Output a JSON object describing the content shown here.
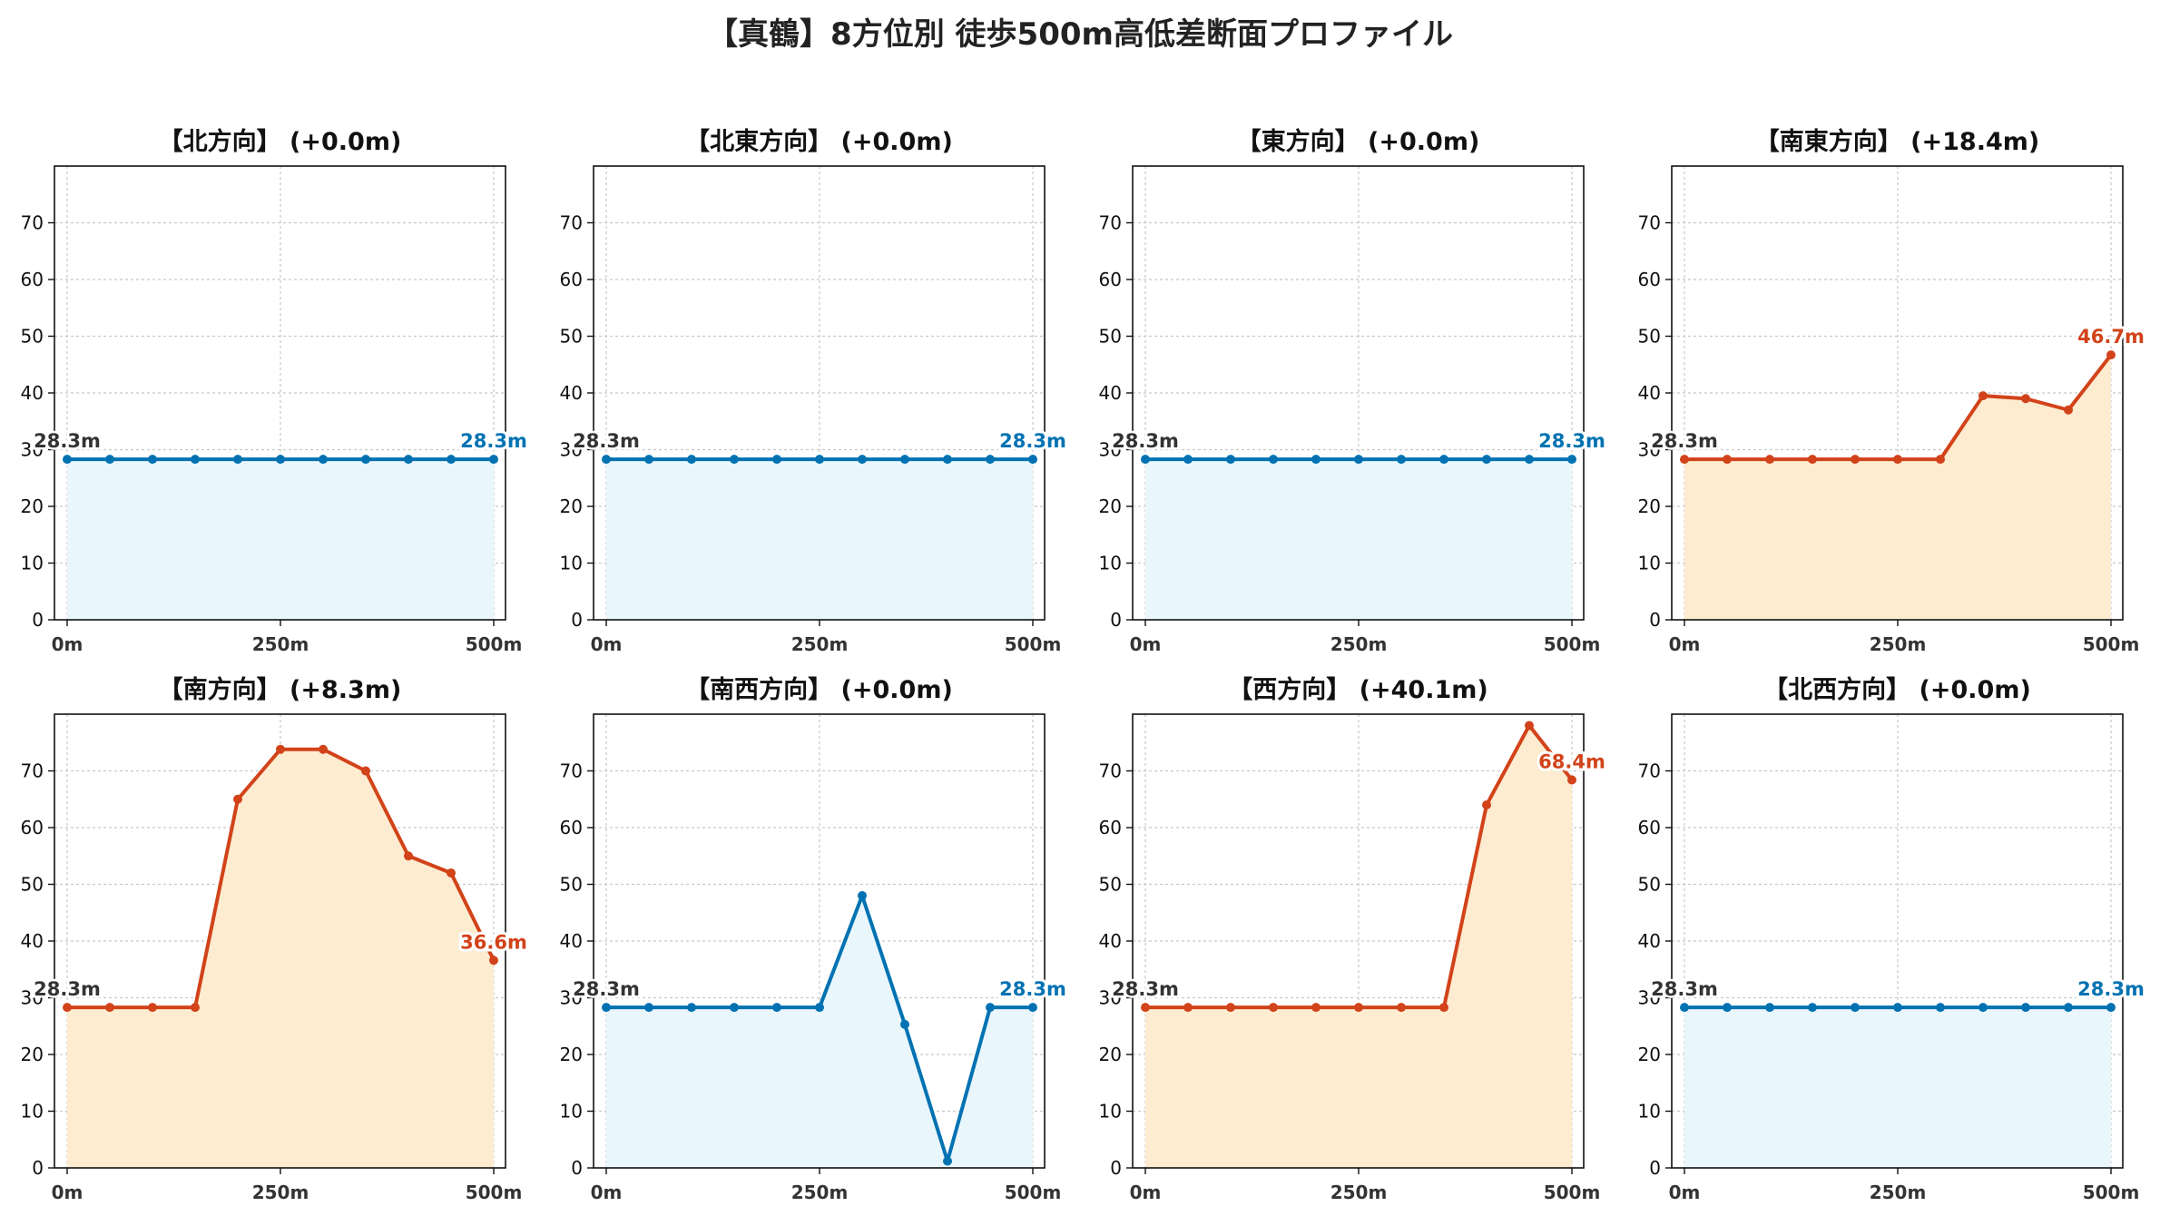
{
  "title": "【真鶴】8方位別 徒歩500m高低差断面プロファイル",
  "colors": {
    "flat_line": "#0072B2",
    "flat_fill": "#e9f6fb",
    "rise_line": "#D2431A",
    "rise_fill": "#fdecd0",
    "start_label": "#333333",
    "grid": "#c8c8c8"
  },
  "chart_data": [
    {
      "type": "area",
      "title": "【北方向】 (+0.0m)",
      "style": "flat",
      "x": [
        0,
        50,
        100,
        150,
        200,
        250,
        300,
        350,
        400,
        450,
        500
      ],
      "y": [
        28.3,
        28.3,
        28.3,
        28.3,
        28.3,
        28.3,
        28.3,
        28.3,
        28.3,
        28.3,
        28.3
      ],
      "xticks": [
        "0m",
        "250m",
        "500m"
      ],
      "yticks": [
        "0",
        "10",
        "20",
        "30",
        "40",
        "50",
        "60",
        "70"
      ],
      "ylim": [
        0,
        80
      ],
      "xlim": [
        0,
        500
      ],
      "grid": true,
      "start_label": "28.3m",
      "end_label": "28.3m"
    },
    {
      "type": "area",
      "title": "【北東方向】 (+0.0m)",
      "style": "flat",
      "x": [
        0,
        50,
        100,
        150,
        200,
        250,
        300,
        350,
        400,
        450,
        500
      ],
      "y": [
        28.3,
        28.3,
        28.3,
        28.3,
        28.3,
        28.3,
        28.3,
        28.3,
        28.3,
        28.3,
        28.3
      ],
      "xticks": [
        "0m",
        "250m",
        "500m"
      ],
      "yticks": [
        "0",
        "10",
        "20",
        "30",
        "40",
        "50",
        "60",
        "70"
      ],
      "ylim": [
        0,
        80
      ],
      "xlim": [
        0,
        500
      ],
      "grid": true,
      "start_label": "28.3m",
      "end_label": "28.3m"
    },
    {
      "type": "area",
      "title": "【東方向】 (+0.0m)",
      "style": "flat",
      "x": [
        0,
        50,
        100,
        150,
        200,
        250,
        300,
        350,
        400,
        450,
        500
      ],
      "y": [
        28.3,
        28.3,
        28.3,
        28.3,
        28.3,
        28.3,
        28.3,
        28.3,
        28.3,
        28.3,
        28.3
      ],
      "xticks": [
        "0m",
        "250m",
        "500m"
      ],
      "yticks": [
        "0",
        "10",
        "20",
        "30",
        "40",
        "50",
        "60",
        "70"
      ],
      "ylim": [
        0,
        80
      ],
      "xlim": [
        0,
        500
      ],
      "grid": true,
      "start_label": "28.3m",
      "end_label": "28.3m"
    },
    {
      "type": "area",
      "title": "【南東方向】 (+18.4m)",
      "style": "rise",
      "x": [
        0,
        50,
        100,
        150,
        200,
        250,
        300,
        350,
        400,
        450,
        500
      ],
      "y": [
        28.3,
        28.3,
        28.3,
        28.3,
        28.3,
        28.3,
        28.3,
        39.5,
        39.0,
        37.0,
        46.7
      ],
      "xticks": [
        "0m",
        "250m",
        "500m"
      ],
      "yticks": [
        "0",
        "10",
        "20",
        "30",
        "40",
        "50",
        "60",
        "70"
      ],
      "ylim": [
        0,
        80
      ],
      "xlim": [
        0,
        500
      ],
      "grid": true,
      "start_label": "28.3m",
      "end_label": "46.7m"
    },
    {
      "type": "area",
      "title": "【南方向】 (+8.3m)",
      "style": "rise",
      "x": [
        0,
        50,
        100,
        150,
        200,
        250,
        300,
        350,
        400,
        450,
        500
      ],
      "y": [
        28.3,
        28.3,
        28.3,
        28.3,
        65.0,
        73.8,
        73.8,
        70.0,
        55.0,
        52.0,
        36.6
      ],
      "xticks": [
        "0m",
        "250m",
        "500m"
      ],
      "yticks": [
        "0",
        "10",
        "20",
        "30",
        "40",
        "50",
        "60",
        "70"
      ],
      "ylim": [
        0,
        80
      ],
      "xlim": [
        0,
        500
      ],
      "grid": true,
      "start_label": "28.3m",
      "end_label": "36.6m"
    },
    {
      "type": "area",
      "title": "【南西方向】 (+0.0m)",
      "style": "flat",
      "x": [
        0,
        50,
        100,
        150,
        200,
        250,
        300,
        350,
        400,
        450,
        500
      ],
      "y": [
        28.3,
        28.3,
        28.3,
        28.3,
        28.3,
        28.3,
        48.0,
        25.3,
        1.2,
        28.3,
        28.3
      ],
      "xticks": [
        "0m",
        "250m",
        "500m"
      ],
      "yticks": [
        "0",
        "10",
        "20",
        "30",
        "40",
        "50",
        "60",
        "70"
      ],
      "ylim": [
        0,
        80
      ],
      "xlim": [
        0,
        500
      ],
      "grid": true,
      "start_label": "28.3m",
      "end_label": "28.3m"
    },
    {
      "type": "area",
      "title": "【西方向】 (+40.1m)",
      "style": "rise",
      "x": [
        0,
        50,
        100,
        150,
        200,
        250,
        300,
        350,
        400,
        450,
        500
      ],
      "y": [
        28.3,
        28.3,
        28.3,
        28.3,
        28.3,
        28.3,
        28.3,
        28.3,
        64.0,
        78.0,
        68.4
      ],
      "xticks": [
        "0m",
        "250m",
        "500m"
      ],
      "yticks": [
        "0",
        "10",
        "20",
        "30",
        "40",
        "50",
        "60",
        "70"
      ],
      "ylim": [
        0,
        80
      ],
      "xlim": [
        0,
        500
      ],
      "grid": true,
      "start_label": "28.3m",
      "end_label": "68.4m"
    },
    {
      "type": "area",
      "title": "【北西方向】 (+0.0m)",
      "style": "flat",
      "x": [
        0,
        50,
        100,
        150,
        200,
        250,
        300,
        350,
        400,
        450,
        500
      ],
      "y": [
        28.3,
        28.3,
        28.3,
        28.3,
        28.3,
        28.3,
        28.3,
        28.3,
        28.3,
        28.3,
        28.3
      ],
      "xticks": [
        "0m",
        "250m",
        "500m"
      ],
      "yticks": [
        "0",
        "10",
        "20",
        "30",
        "40",
        "50",
        "60",
        "70"
      ],
      "ylim": [
        0,
        80
      ],
      "xlim": [
        0,
        500
      ],
      "grid": true,
      "start_label": "28.3m",
      "end_label": "28.3m"
    }
  ]
}
